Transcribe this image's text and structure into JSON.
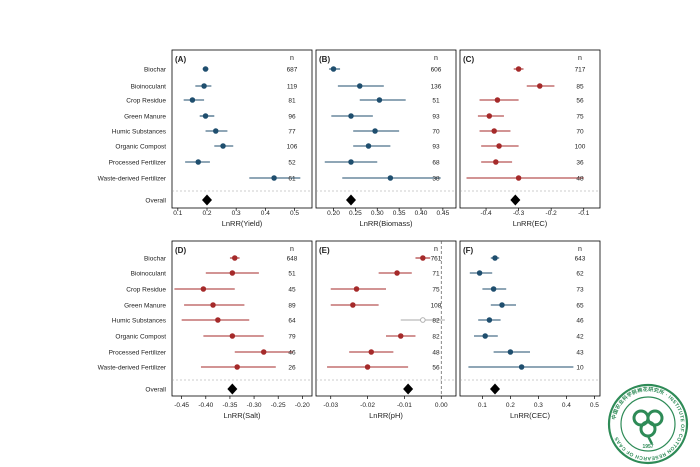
{
  "colors": {
    "positive": "#1f4e6e",
    "negative": "#a52a2a",
    "nonsignificant": "#aaaaaa",
    "text": "#222222",
    "frame": "#000000"
  },
  "categories": [
    "Biochar",
    "Bioinoculant",
    "Crop Residue",
    "Green Manure",
    "Humic Substances",
    "Organic Compost",
    "Processed Fertilizer",
    "Waste-derived Fertilizer"
  ],
  "overall_label": "Overall",
  "n_header": "n",
  "seal": {
    "text": "中国农业科学院棉花研究所 · INSTITUTE OF COTTON RESEARCH OF CAAS",
    "year": "1957",
    "color": "#2e8b57"
  },
  "chart_data": [
    {
      "type": "forest",
      "panel_label": "(A)",
      "xlabel": "LnRR(Yield)",
      "xlim": [
        0.08,
        0.56
      ],
      "ticks": [
        0.1,
        0.2,
        0.3,
        0.4,
        0.5
      ],
      "tick_labels": [
        "0.1",
        "0.2",
        "0.3",
        "0.4",
        "0.5"
      ],
      "mean": [
        0.195,
        0.19,
        0.15,
        0.195,
        0.23,
        0.255,
        0.17,
        0.43
      ],
      "lower": [
        0.185,
        0.16,
        0.12,
        0.175,
        0.195,
        0.225,
        0.125,
        0.345
      ],
      "upper": [
        0.205,
        0.215,
        0.19,
        0.225,
        0.27,
        0.29,
        0.21,
        0.52
      ],
      "n": [
        "687",
        "119",
        "81",
        "96",
        "77",
        "106",
        "52",
        "61"
      ],
      "overall": 0.2,
      "color": "positive",
      "reference_line": null
    },
    {
      "type": "forest",
      "panel_label": "(B)",
      "xlabel": "LnRR(Biomass)",
      "xlim": [
        0.16,
        0.48
      ],
      "ticks": [
        0.2,
        0.25,
        0.3,
        0.35,
        0.4,
        0.45
      ],
      "tick_labels": [
        "0.20",
        "0.25",
        "0.30",
        "0.35",
        "0.40",
        "0.45"
      ],
      "mean": [
        0.2,
        0.26,
        0.305,
        0.24,
        0.295,
        0.28,
        0.24,
        0.33
      ],
      "lower": [
        0.19,
        0.21,
        0.26,
        0.195,
        0.245,
        0.245,
        0.18,
        0.22
      ],
      "upper": [
        0.215,
        0.315,
        0.365,
        0.29,
        0.35,
        0.33,
        0.3,
        0.445
      ],
      "n": [
        "606",
        "136",
        "51",
        "93",
        "70",
        "93",
        "68",
        "38"
      ],
      "overall": 0.24,
      "color": "positive",
      "reference_line": null
    },
    {
      "type": "forest",
      "panel_label": "(C)",
      "xlabel": "LnRR(EC)",
      "xlim": [
        -0.48,
        -0.05
      ],
      "ticks": [
        -0.4,
        -0.3,
        -0.2,
        -0.1
      ],
      "tick_labels": [
        "-0.4",
        "-0.3",
        "-0.2",
        "-0.1"
      ],
      "mean": [
        -0.3,
        -0.235,
        -0.365,
        -0.39,
        -0.375,
        -0.36,
        -0.37,
        -0.3
      ],
      "lower": [
        -0.315,
        -0.275,
        -0.42,
        -0.425,
        -0.42,
        -0.415,
        -0.415,
        -0.46
      ],
      "upper": [
        -0.285,
        -0.19,
        -0.3,
        -0.345,
        -0.325,
        -0.3,
        -0.32,
        -0.1
      ],
      "n": [
        "717",
        "85",
        "56",
        "75",
        "70",
        "100",
        "36",
        "48"
      ],
      "overall": -0.31,
      "color": "negative",
      "reference_line": null
    },
    {
      "type": "forest",
      "panel_label": "(D)",
      "xlabel": "LnRR(Salt)",
      "xlim": [
        -0.47,
        -0.18
      ],
      "ticks": [
        -0.45,
        -0.4,
        -0.35,
        -0.3,
        -0.25,
        -0.2
      ],
      "tick_labels": [
        "-0.45",
        "-0.40",
        "-0.35",
        "-0.30",
        "-0.25",
        "-0.20"
      ],
      "mean": [
        -0.34,
        -0.345,
        -0.405,
        -0.385,
        -0.375,
        -0.345,
        -0.28,
        -0.335
      ],
      "lower": [
        -0.35,
        -0.4,
        -0.465,
        -0.445,
        -0.45,
        -0.405,
        -0.34,
        -0.41
      ],
      "upper": [
        -0.33,
        -0.29,
        -0.34,
        -0.32,
        -0.31,
        -0.28,
        -0.22,
        -0.255
      ],
      "n": [
        "648",
        "51",
        "45",
        "89",
        "64",
        "79",
        "46",
        "26"
      ],
      "overall": -0.345,
      "color": "negative",
      "reference_line": null
    },
    {
      "type": "forest",
      "panel_label": "(E)",
      "xlabel": "LnRR(pH)",
      "xlim": [
        -0.034,
        0.004
      ],
      "ticks": [
        -0.03,
        -0.02,
        -0.01,
        0.0
      ],
      "tick_labels": [
        "-0.03",
        "-0.02",
        "-0.01",
        "0.00"
      ],
      "mean": [
        -0.005,
        -0.012,
        -0.023,
        -0.024,
        -0.005,
        -0.011,
        -0.019,
        -0.02
      ],
      "lower": [
        -0.007,
        -0.017,
        -0.03,
        -0.03,
        -0.011,
        -0.015,
        -0.025,
        -0.031
      ],
      "upper": [
        -0.003,
        -0.008,
        -0.015,
        -0.017,
        0.001,
        -0.007,
        -0.013,
        -0.009
      ],
      "n": [
        "761",
        "71",
        "75",
        "108",
        "82",
        "82",
        "48",
        "56"
      ],
      "overall": -0.009,
      "color": "negative",
      "nonsignificant_rows": [
        4
      ],
      "reference_line": 0
    },
    {
      "type": "forest",
      "panel_label": "(F)",
      "xlabel": "LnRR(CEC)",
      "xlim": [
        0.02,
        0.52
      ],
      "ticks": [
        0.1,
        0.2,
        0.3,
        0.4,
        0.5
      ],
      "tick_labels": [
        "0.1",
        "0.2",
        "0.3",
        "0.4",
        "0.5"
      ],
      "mean": [
        0.145,
        0.09,
        0.14,
        0.17,
        0.125,
        0.11,
        0.2,
        0.24
      ],
      "lower": [
        0.13,
        0.055,
        0.1,
        0.13,
        0.085,
        0.07,
        0.14,
        0.05
      ],
      "upper": [
        0.16,
        0.135,
        0.185,
        0.22,
        0.165,
        0.155,
        0.27,
        0.425
      ],
      "n": [
        "643",
        "62",
        "73",
        "65",
        "46",
        "42",
        "43",
        "10"
      ],
      "overall": 0.145,
      "color": "positive",
      "reference_line": null
    }
  ]
}
